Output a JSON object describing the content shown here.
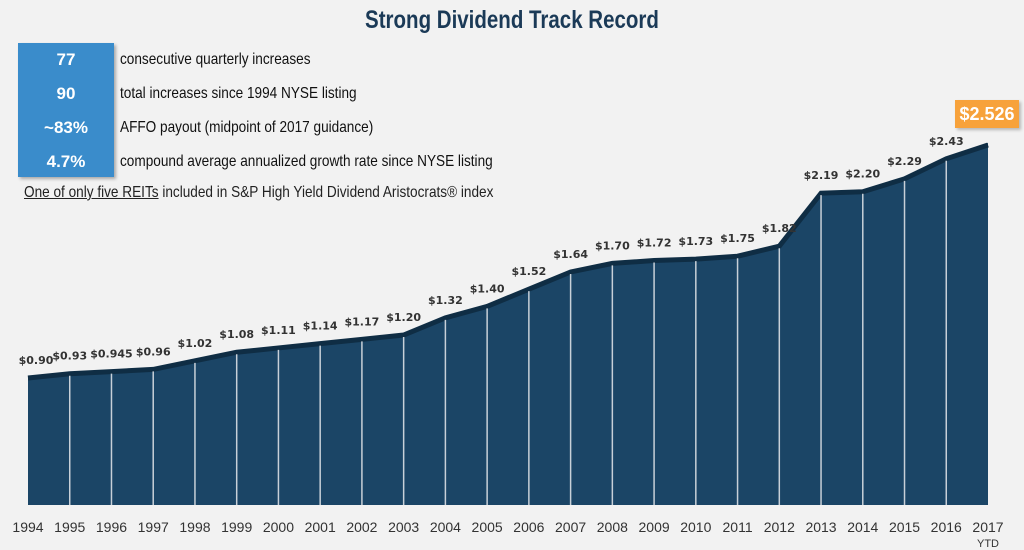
{
  "title": "Strong Dividend Track Record",
  "stats": [
    {
      "value": "77",
      "label": "consecutive quarterly increases"
    },
    {
      "value": "90",
      "label": "total increases since 1994 NYSE listing"
    },
    {
      "value": "~83%",
      "label": "AFFO payout (midpoint of 2017 guidance)"
    },
    {
      "value": "4.7%",
      "label": "compound average annualized growth rate since NYSE listing"
    }
  ],
  "note": {
    "underlined": "One of only five REITs",
    "rest": " included in S&P High Yield Dividend Aristocrats® index"
  },
  "colors": {
    "area": "#1b4566",
    "edge": "#0f2d44",
    "stat_box": "#3a8ccb",
    "callout": "#f7a23b"
  },
  "chart_data": {
    "type": "area",
    "x": [
      "1994",
      "1995",
      "1996",
      "1997",
      "1998",
      "1999",
      "2000",
      "2001",
      "2002",
      "2003",
      "2004",
      "2005",
      "2006",
      "2007",
      "2008",
      "2009",
      "2010",
      "2011",
      "2012",
      "2013",
      "2014",
      "2015",
      "2016",
      "2017"
    ],
    "x_sublabel_last": "YTD",
    "values": [
      0.9,
      0.93,
      0.945,
      0.96,
      1.02,
      1.08,
      1.11,
      1.14,
      1.17,
      1.2,
      1.32,
      1.4,
      1.52,
      1.64,
      1.7,
      1.72,
      1.73,
      1.75,
      1.82,
      2.19,
      2.2,
      2.29,
      2.43,
      2.526
    ],
    "labels": [
      "$0.90",
      "$0.93",
      "$0.945",
      "$0.96",
      "$1.02",
      "$1.08",
      "$1.11",
      "$1.14",
      "$1.17",
      "$1.20",
      "$1.32",
      "$1.40",
      "$1.52",
      "$1.64",
      "$1.70",
      "$1.72",
      "$1.73",
      "$1.75",
      "$1.82",
      "$2.19",
      "$2.20",
      "$2.29",
      "$2.43",
      "$2.526"
    ],
    "highlight_label": "$2.526",
    "ylim": [
      0,
      2.6
    ],
    "grid": false
  }
}
